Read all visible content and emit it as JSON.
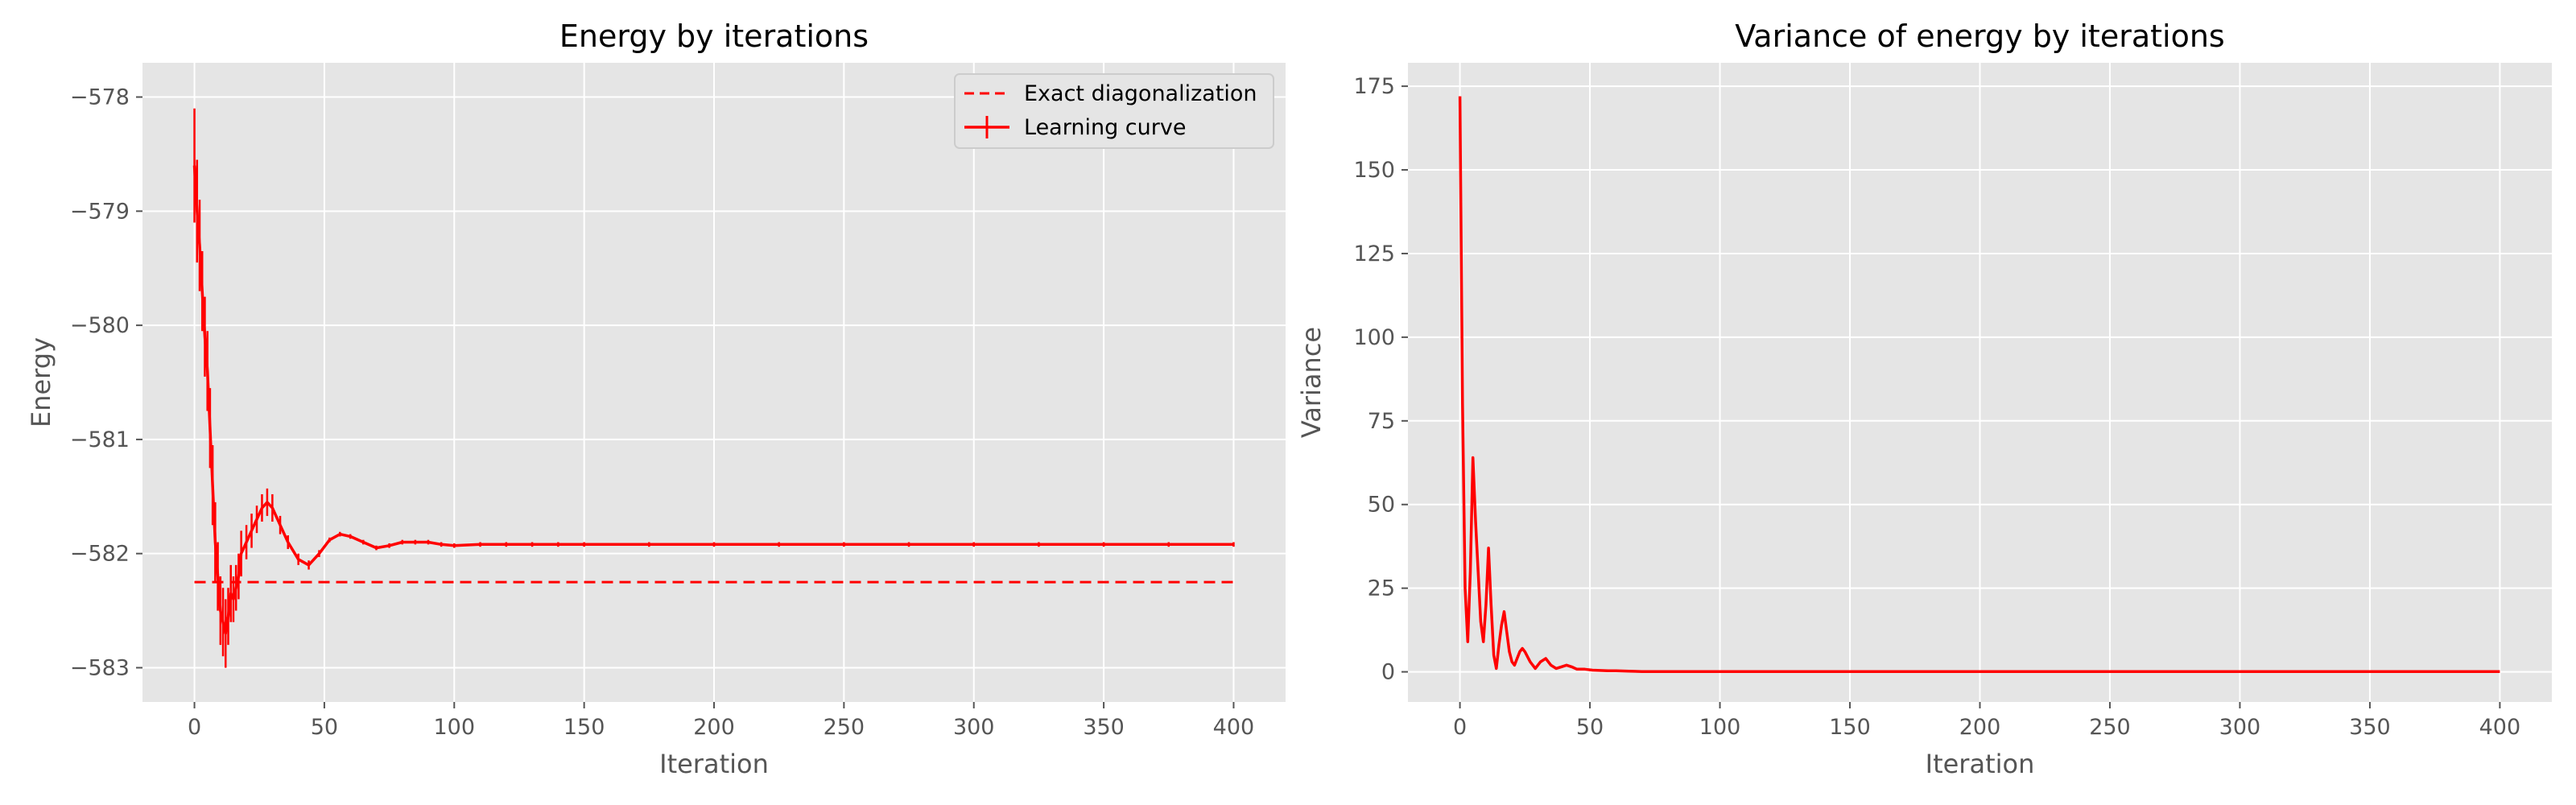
{
  "colors": {
    "background": "#e5e5e5",
    "grid": "#ffffff",
    "line": "#ff0000",
    "tick_text": "#555555"
  },
  "chart_data": [
    {
      "type": "line",
      "title": "Energy by iterations",
      "xlabel": "Iteration",
      "ylabel": "Energy",
      "xlim": [
        -20,
        420
      ],
      "ylim": [
        -583.3,
        -577.7
      ],
      "xticks": [
        0,
        50,
        100,
        150,
        200,
        250,
        300,
        350,
        400
      ],
      "yticks": [
        -583,
        -582,
        -581,
        -580,
        -579,
        -578
      ],
      "ytick_labels": [
        "−583",
        "−582",
        "−581",
        "−580",
        "−579",
        "−578"
      ],
      "grid": true,
      "legend": "top-right",
      "series": [
        {
          "name": "Exact diagonalization",
          "style": "dashed",
          "color": "#ff0000",
          "x": [
            0,
            400
          ],
          "y": [
            -582.25,
            -582.25
          ]
        },
        {
          "name": "Learning curve",
          "style": "solid-with-errorbars",
          "color": "#ff0000",
          "x": [
            0,
            1,
            2,
            3,
            4,
            5,
            6,
            7,
            8,
            9,
            10,
            11,
            12,
            13,
            14,
            15,
            16,
            17,
            18,
            20,
            22,
            24,
            26,
            28,
            30,
            33,
            36,
            40,
            44,
            48,
            52,
            56,
            60,
            65,
            70,
            75,
            80,
            85,
            90,
            95,
            100,
            110,
            120,
            130,
            140,
            150,
            175,
            200,
            225,
            250,
            275,
            300,
            325,
            350,
            375,
            400
          ],
          "y": [
            -578.6,
            -579.0,
            -579.3,
            -579.7,
            -580.1,
            -580.4,
            -580.9,
            -581.4,
            -581.9,
            -582.2,
            -582.5,
            -582.6,
            -582.7,
            -582.55,
            -582.35,
            -582.4,
            -582.3,
            -582.2,
            -582.0,
            -581.9,
            -581.8,
            -581.7,
            -581.6,
            -581.55,
            -581.6,
            -581.75,
            -581.9,
            -582.05,
            -582.1,
            -582.0,
            -581.88,
            -581.83,
            -581.85,
            -581.9,
            -581.95,
            -581.93,
            -581.9,
            -581.9,
            -581.9,
            -581.92,
            -581.93,
            -581.92,
            -581.92,
            -581.92,
            -581.92,
            -581.92,
            -581.92,
            -581.92,
            -581.92,
            -581.92,
            -581.92,
            -581.92,
            -581.92,
            -581.92,
            -581.92,
            -581.92
          ],
          "yerr": [
            0.5,
            0.45,
            0.4,
            0.35,
            0.35,
            0.35,
            0.35,
            0.35,
            0.35,
            0.3,
            0.3,
            0.3,
            0.3,
            0.25,
            0.25,
            0.2,
            0.2,
            0.2,
            0.2,
            0.15,
            0.15,
            0.12,
            0.12,
            0.12,
            0.12,
            0.08,
            0.06,
            0.05,
            0.04,
            0.03,
            0.02,
            0.02,
            0.02,
            0.02,
            0.02,
            0.02,
            0.02,
            0.02,
            0.02,
            0.02,
            0.02,
            0.02,
            0.02,
            0.02,
            0.02,
            0.02,
            0.02,
            0.02,
            0.02,
            0.02,
            0.02,
            0.02,
            0.02,
            0.02,
            0.02,
            0.02
          ]
        }
      ]
    },
    {
      "type": "line",
      "title": "Variance of energy by iterations",
      "xlabel": "Iteration",
      "ylabel": "Variance",
      "xlim": [
        -20,
        420
      ],
      "ylim": [
        -9,
        182
      ],
      "xticks": [
        0,
        50,
        100,
        150,
        200,
        250,
        300,
        350,
        400
      ],
      "yticks": [
        0,
        25,
        50,
        75,
        100,
        125,
        150,
        175
      ],
      "ytick_labels": [
        "0",
        "25",
        "50",
        "75",
        "100",
        "125",
        "150",
        "175"
      ],
      "grid": true,
      "series": [
        {
          "style": "solid",
          "color": "#ff0000",
          "x": [
            0,
            1,
            2,
            3,
            4,
            5,
            6,
            7,
            8,
            9,
            10,
            11,
            12,
            13,
            14,
            15,
            16,
            17,
            18,
            19,
            20,
            21,
            22,
            23,
            24,
            25,
            27,
            29,
            31,
            33,
            35,
            37,
            39,
            41,
            43,
            45,
            48,
            51,
            54,
            57,
            60,
            65,
            70,
            80,
            100,
            150,
            200,
            250,
            300,
            350,
            400
          ],
          "y": [
            172,
            80,
            25,
            9,
            30,
            64,
            45,
            30,
            15,
            9,
            20,
            37,
            20,
            5,
            1,
            8,
            14,
            18,
            12,
            6,
            3,
            2,
            4,
            6,
            7,
            6,
            3,
            1,
            3,
            4,
            2,
            1,
            1.5,
            2,
            1.5,
            0.8,
            0.8,
            0.5,
            0.4,
            0.3,
            0.3,
            0.2,
            0.1,
            0.1,
            0.1,
            0.1,
            0.1,
            0.1,
            0.1,
            0.1,
            0.1
          ]
        }
      ]
    }
  ]
}
